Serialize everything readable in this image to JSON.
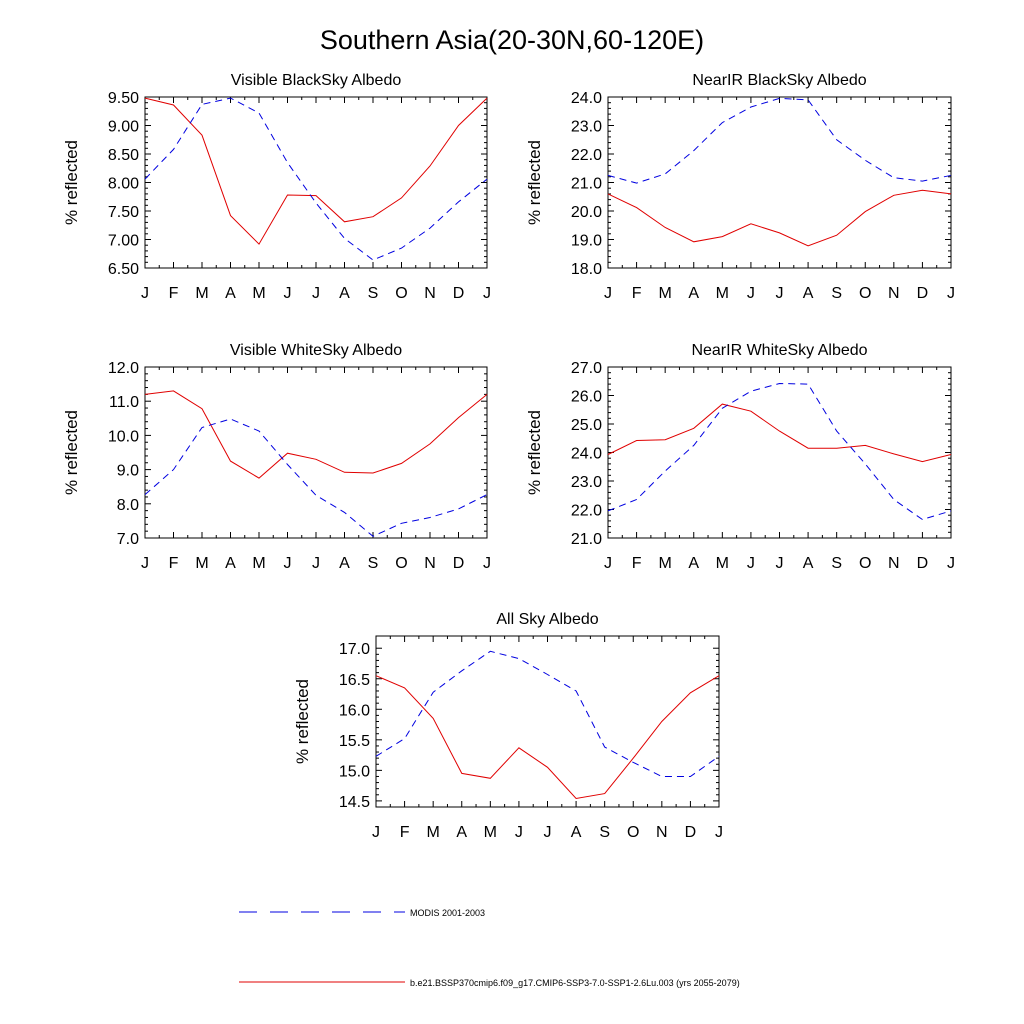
{
  "title": "Southern Asia(20-30N,60-120E)",
  "colors": {
    "model": "#e00000",
    "obs": "#0000e0",
    "axis": "#000000"
  },
  "legend": {
    "obs_label": "MODIS 2001-2003",
    "model_label": "b.e21.BSSP370cmip6.f09_g17.CMIP6-SSP3-7.0-SSP1-2.6Lu.003 (yrs 2055-2079)"
  },
  "chart_data": [
    {
      "type": "line",
      "title": "Visible BlackSky Albedo",
      "ylabel": "% reflected",
      "ylim": [
        6.5,
        9.5
      ],
      "yticks": [
        "6.50",
        "7.00",
        "7.50",
        "8.00",
        "8.50",
        "9.00",
        "9.50"
      ],
      "yticks_values": [
        6.5,
        7.0,
        7.5,
        8.0,
        8.5,
        9.0,
        9.5
      ],
      "categories": [
        "J",
        "F",
        "M",
        "A",
        "M",
        "J",
        "J",
        "A",
        "S",
        "O",
        "N",
        "D",
        "J"
      ],
      "series": [
        {
          "name": "b.e21.BSSP370cmip6.f09_g17.CMIP6-SSP3-7.0-SSP1-2.6Lu.003 (yrs 2055-2079)",
          "style": "solid",
          "values": [
            9.48,
            9.36,
            8.83,
            7.42,
            6.92,
            7.78,
            7.77,
            7.31,
            7.4,
            7.73,
            8.29,
            9.0,
            9.48
          ]
        },
        {
          "name": "MODIS 2001-2003",
          "style": "dashed",
          "values": [
            8.06,
            8.58,
            9.37,
            9.48,
            9.22,
            8.35,
            7.64,
            7.02,
            6.64,
            6.85,
            7.2,
            7.66,
            8.06
          ]
        }
      ]
    },
    {
      "type": "line",
      "title": "NearIR BlackSky Albedo",
      "ylabel": "% reflected",
      "ylim": [
        18.0,
        24.0
      ],
      "yticks": [
        "18.0",
        "19.0",
        "20.0",
        "21.0",
        "22.0",
        "23.0",
        "24.0"
      ],
      "yticks_values": [
        18,
        19,
        20,
        21,
        22,
        23,
        24
      ],
      "categories": [
        "J",
        "F",
        "M",
        "A",
        "M",
        "J",
        "J",
        "A",
        "S",
        "O",
        "N",
        "D",
        "J"
      ],
      "series": [
        {
          "name": "b.e21.BSSP370cmip6.f09_g17.CMIP6-SSP3-7.0-SSP1-2.6Lu.003 (yrs 2055-2079)",
          "style": "solid",
          "values": [
            20.6,
            20.12,
            19.42,
            18.92,
            19.1,
            19.55,
            19.23,
            18.78,
            19.15,
            19.98,
            20.55,
            20.73,
            20.6
          ]
        },
        {
          "name": "MODIS 2001-2003",
          "style": "dashed",
          "values": [
            21.25,
            20.98,
            21.3,
            22.12,
            23.1,
            23.65,
            23.95,
            23.9,
            22.5,
            21.78,
            21.17,
            21.05,
            21.25
          ]
        }
      ]
    },
    {
      "type": "line",
      "title": "Visible WhiteSky Albedo",
      "ylabel": "% reflected",
      "ylim": [
        7.0,
        12.0
      ],
      "yticks": [
        "7.0",
        "8.0",
        "9.0",
        "10.0",
        "11.0",
        "12.0"
      ],
      "yticks_values": [
        7,
        8,
        9,
        10,
        11,
        12
      ],
      "categories": [
        "J",
        "F",
        "M",
        "A",
        "M",
        "J",
        "J",
        "A",
        "S",
        "O",
        "N",
        "D",
        "J"
      ],
      "series": [
        {
          "name": "b.e21.BSSP370cmip6.f09_g17.CMIP6-SSP3-7.0-SSP1-2.6Lu.003 (yrs 2055-2079)",
          "style": "solid",
          "values": [
            11.2,
            11.3,
            10.78,
            9.25,
            8.75,
            9.48,
            9.3,
            8.92,
            8.9,
            9.18,
            9.75,
            10.52,
            11.2
          ]
        },
        {
          "name": "MODIS 2001-2003",
          "style": "dashed",
          "values": [
            8.27,
            9.0,
            10.23,
            10.48,
            10.13,
            9.15,
            8.25,
            7.75,
            7.05,
            7.43,
            7.6,
            7.85,
            8.27
          ]
        }
      ]
    },
    {
      "type": "line",
      "title": "NearIR WhiteSky Albedo",
      "ylabel": "% reflected",
      "ylim": [
        21.0,
        27.0
      ],
      "yticks": [
        "21.0",
        "22.0",
        "23.0",
        "24.0",
        "25.0",
        "26.0",
        "27.0"
      ],
      "yticks_values": [
        21,
        22,
        23,
        24,
        25,
        26,
        27
      ],
      "categories": [
        "J",
        "F",
        "M",
        "A",
        "M",
        "J",
        "J",
        "A",
        "S",
        "O",
        "N",
        "D",
        "J"
      ],
      "series": [
        {
          "name": "b.e21.BSSP370cmip6.f09_g17.CMIP6-SSP3-7.0-SSP1-2.6Lu.003 (yrs 2055-2079)",
          "style": "solid",
          "values": [
            23.93,
            24.42,
            24.45,
            24.85,
            25.7,
            25.45,
            24.75,
            24.15,
            24.15,
            24.25,
            23.95,
            23.68,
            23.93
          ]
        },
        {
          "name": "MODIS 2001-2003",
          "style": "dashed",
          "values": [
            21.95,
            22.35,
            23.35,
            24.25,
            25.55,
            26.15,
            26.42,
            26.4,
            24.75,
            23.6,
            22.35,
            21.65,
            21.95
          ]
        }
      ]
    },
    {
      "type": "line",
      "title": "All Sky Albedo",
      "ylabel": "% reflected",
      "ylim": [
        14.4,
        17.2
      ],
      "yticks": [
        "14.5",
        "15.0",
        "15.5",
        "16.0",
        "16.5",
        "17.0"
      ],
      "yticks_values": [
        14.5,
        15.0,
        15.5,
        16.0,
        16.5,
        17.0
      ],
      "categories": [
        "J",
        "F",
        "M",
        "A",
        "M",
        "J",
        "J",
        "A",
        "S",
        "O",
        "N",
        "D",
        "J"
      ],
      "series": [
        {
          "name": "b.e21.BSSP370cmip6.f09_g17.CMIP6-SSP3-7.0-SSP1-2.6Lu.003 (yrs 2055-2079)",
          "style": "solid",
          "values": [
            16.55,
            16.35,
            15.85,
            14.95,
            14.87,
            15.37,
            15.05,
            14.54,
            14.62,
            15.2,
            15.8,
            16.27,
            16.55
          ]
        },
        {
          "name": "MODIS 2001-2003",
          "style": "dashed",
          "values": [
            15.23,
            15.52,
            16.28,
            16.63,
            16.95,
            16.83,
            16.57,
            16.3,
            15.38,
            15.13,
            14.9,
            14.9,
            15.23
          ]
        }
      ]
    }
  ]
}
